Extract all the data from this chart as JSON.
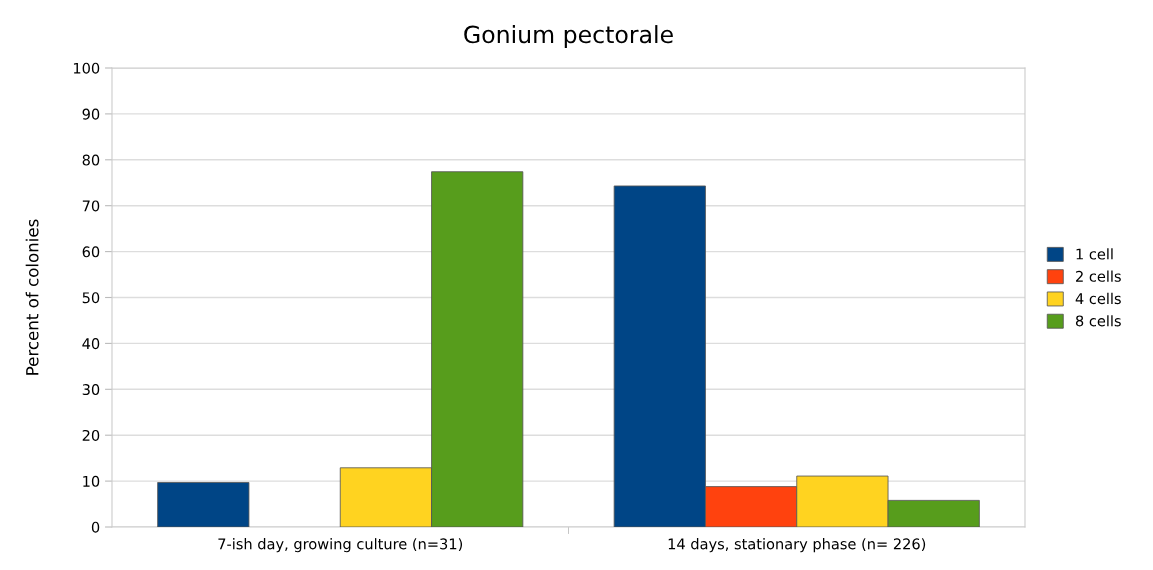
{
  "chart_data": {
    "type": "bar",
    "title": "Gonium pectorale",
    "ylabel": "Percent of colonies",
    "categories": [
      "7-ish day, growing culture (n=31)",
      "14 days, stationary phase (n= 226)"
    ],
    "series": [
      {
        "name": "1 cell",
        "color": "#004586",
        "values": [
          9.7,
          74.3
        ]
      },
      {
        "name": "2 cells",
        "color": "#ff420e",
        "values": [
          null,
          8.8
        ]
      },
      {
        "name": "4 cells",
        "color": "#ffd320",
        "values": [
          12.9,
          11.1
        ]
      },
      {
        "name": "8 cells",
        "color": "#579d1c",
        "values": [
          77.4,
          5.8
        ]
      }
    ],
    "ylim": [
      0,
      100
    ],
    "yticks": [
      0,
      10,
      20,
      30,
      40,
      50,
      60,
      70,
      80,
      90,
      100
    ],
    "grid": "y",
    "legend": "right"
  }
}
